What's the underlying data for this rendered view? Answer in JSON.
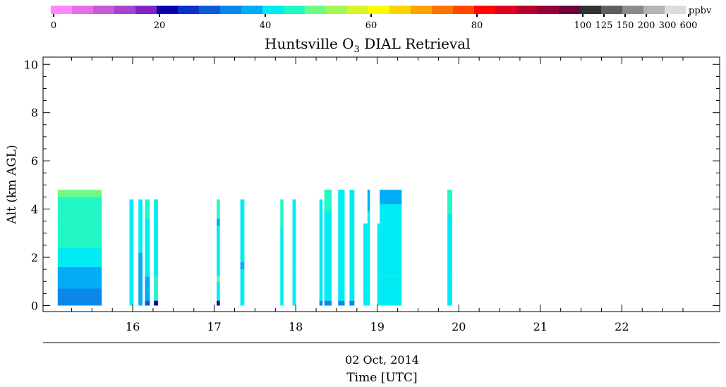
{
  "chart_data": {
    "type": "heatmap",
    "title": "Huntsville O",
    "title_subscript": "3",
    "title_suffix": " DIAL Retrieval",
    "xlabel_date": "02 Oct, 2014",
    "xlabel": "Time [UTC]",
    "ylabel": "Alt (km AGL)",
    "xlim": [
      14.9,
      23.2
    ],
    "ylim": [
      -0.25,
      10.3
    ],
    "x_ticks": [
      16,
      17,
      18,
      19,
      20,
      21,
      22
    ],
    "x_tick_labels": [
      "16",
      "17",
      "18",
      "19",
      "20",
      "21",
      "22"
    ],
    "y_ticks": [
      0,
      2,
      4,
      6,
      8,
      10
    ],
    "y_tick_labels": [
      "0",
      "2",
      "4",
      "6",
      "8",
      "10"
    ],
    "grid": false,
    "colorbar": {
      "units": "ppbv",
      "bins": [
        "#ff88ff",
        "#e36ee8",
        "#c65ad8",
        "#a646d0",
        "#8224c6",
        "#0a00aa",
        "#0a32c8",
        "#0c5ad8",
        "#0b86ea",
        "#02acf6",
        "#00ecf4",
        "#22f7c6",
        "#6ef989",
        "#a6f659",
        "#d9f624",
        "#fdfb00",
        "#fed100",
        "#ffa300",
        "#ff7300",
        "#ff4700",
        "#ff0700",
        "#e3001d",
        "#b7002b",
        "#95003b",
        "#6e003d",
        "#313131",
        "#5f5f5f",
        "#8b8b8b",
        "#b4b4b4",
        "#dcdcdc"
      ],
      "tick_labels": [
        {
          "bin": 0,
          "label": "0"
        },
        {
          "bin": 5,
          "label": "20"
        },
        {
          "bin": 10,
          "label": "40"
        },
        {
          "bin": 15,
          "label": "60"
        },
        {
          "bin": 20,
          "label": "80"
        },
        {
          "bin": 25,
          "label": "100"
        },
        {
          "bin": 26,
          "label": "125"
        },
        {
          "bin": 27,
          "label": "150"
        },
        {
          "bin": 28,
          "label": "200"
        },
        {
          "bin": 29,
          "label": "300"
        },
        {
          "bin": 30,
          "label": "600"
        }
      ]
    },
    "profiles": [
      {
        "t0": 15.08,
        "t1": 15.62,
        "top": 4.8,
        "layers": [
          {
            "z0": 0.0,
            "z1": 0.7,
            "ppbv": 35
          },
          {
            "z0": 0.7,
            "z1": 1.6,
            "ppbv": 38
          },
          {
            "z0": 1.6,
            "z1": 2.4,
            "ppbv": 41
          },
          {
            "z0": 2.4,
            "z1": 3.6,
            "ppbv": 44
          },
          {
            "z0": 3.6,
            "z1": 4.5,
            "ppbv": 46
          },
          {
            "z0": 4.5,
            "z1": 4.8,
            "ppbv": 49
          }
        ]
      },
      {
        "t0": 15.96,
        "t1": 16.01,
        "top": 4.4,
        "layers": [
          {
            "z0": 0.0,
            "z1": 3.0,
            "ppbv": 40
          },
          {
            "z0": 3.0,
            "z1": 4.4,
            "ppbv": 43
          }
        ]
      },
      {
        "t0": 16.07,
        "t1": 16.12,
        "top": 4.4,
        "layers": [
          {
            "z0": 0.0,
            "z1": 2.2,
            "ppbv": 39
          },
          {
            "z0": 2.2,
            "z1": 4.4,
            "ppbv": 42
          }
        ]
      },
      {
        "t0": 16.15,
        "t1": 16.21,
        "top": 4.4,
        "layers": [
          {
            "z0": 0.0,
            "z1": 0.2,
            "ppbv": 28
          },
          {
            "z0": 0.2,
            "z1": 1.2,
            "ppbv": 38
          },
          {
            "z0": 1.2,
            "z1": 3.6,
            "ppbv": 41
          },
          {
            "z0": 3.6,
            "z1": 4.4,
            "ppbv": 47
          }
        ]
      },
      {
        "t0": 16.26,
        "t1": 16.31,
        "top": 4.4,
        "layers": [
          {
            "z0": 0.0,
            "z1": 0.2,
            "ppbv": 22
          },
          {
            "z0": 0.2,
            "z1": 1.2,
            "ppbv": 45
          },
          {
            "z0": 1.2,
            "z1": 4.4,
            "ppbv": 42
          }
        ]
      },
      {
        "t0": 17.03,
        "t1": 17.07,
        "top": 4.4,
        "layers": [
          {
            "z0": 0.0,
            "z1": 0.2,
            "ppbv": 22
          },
          {
            "z0": 0.2,
            "z1": 1.0,
            "ppbv": 40
          },
          {
            "z0": 1.0,
            "z1": 1.2,
            "ppbv": 48
          },
          {
            "z0": 1.2,
            "z1": 3.3,
            "ppbv": 41
          },
          {
            "z0": 3.3,
            "z1": 3.6,
            "ppbv": 37
          },
          {
            "z0": 3.6,
            "z1": 4.4,
            "ppbv": 44
          }
        ]
      },
      {
        "t0": 17.32,
        "t1": 17.37,
        "top": 4.4,
        "layers": [
          {
            "z0": 0.0,
            "z1": 1.5,
            "ppbv": 40
          },
          {
            "z0": 1.5,
            "z1": 1.8,
            "ppbv": 37
          },
          {
            "z0": 1.8,
            "z1": 4.4,
            "ppbv": 42
          }
        ]
      },
      {
        "t0": 17.81,
        "t1": 17.85,
        "top": 4.4,
        "layers": [
          {
            "z0": 0.0,
            "z1": 3.2,
            "ppbv": 40
          },
          {
            "z0": 3.2,
            "z1": 4.4,
            "ppbv": 44
          }
        ]
      },
      {
        "t0": 17.96,
        "t1": 18.0,
        "top": 4.4,
        "layers": [
          {
            "z0": 0.0,
            "z1": 1.5,
            "ppbv": 40
          },
          {
            "z0": 1.5,
            "z1": 4.4,
            "ppbv": 42
          }
        ]
      },
      {
        "t0": 18.29,
        "t1": 18.33,
        "top": 4.4,
        "layers": [
          {
            "z0": 0.0,
            "z1": 0.2,
            "ppbv": 35
          },
          {
            "z0": 0.2,
            "z1": 4.4,
            "ppbv": 41
          }
        ]
      },
      {
        "t0": 18.35,
        "t1": 18.44,
        "top": 4.8,
        "layers": [
          {
            "z0": 0.0,
            "z1": 0.2,
            "ppbv": 35
          },
          {
            "z0": 0.2,
            "z1": 3.9,
            "ppbv": 40
          },
          {
            "z0": 3.9,
            "z1": 4.8,
            "ppbv": 44
          }
        ]
      },
      {
        "t0": 18.52,
        "t1": 18.6,
        "top": 4.8,
        "layers": [
          {
            "z0": 0.0,
            "z1": 0.2,
            "ppbv": 35
          },
          {
            "z0": 0.2,
            "z1": 4.3,
            "ppbv": 40
          },
          {
            "z0": 4.3,
            "z1": 4.8,
            "ppbv": 43
          }
        ]
      },
      {
        "t0": 18.66,
        "t1": 18.72,
        "top": 4.8,
        "layers": [
          {
            "z0": 0.0,
            "z1": 0.2,
            "ppbv": 35
          },
          {
            "z0": 0.2,
            "z1": 4.8,
            "ppbv": 40
          }
        ]
      },
      {
        "t0": 18.83,
        "t1": 18.88,
        "top": 3.4,
        "layers": [
          {
            "z0": 0.0,
            "z1": 3.4,
            "ppbv": 40
          }
        ]
      },
      {
        "t0": 18.88,
        "t1": 18.91,
        "top": 4.8,
        "layers": [
          {
            "z0": 0.0,
            "z1": 3.9,
            "ppbv": 40
          },
          {
            "z0": 3.9,
            "z1": 4.8,
            "ppbv": 37
          }
        ]
      },
      {
        "t0": 19.0,
        "t1": 19.03,
        "top": 3.4,
        "layers": [
          {
            "z0": 0.0,
            "z1": 3.4,
            "ppbv": 40
          }
        ]
      },
      {
        "t0": 19.03,
        "t1": 19.3,
        "top": 4.8,
        "layers": [
          {
            "z0": 0.0,
            "z1": 1.2,
            "ppbv": 40
          },
          {
            "z0": 1.2,
            "z1": 3.3,
            "ppbv": 42
          },
          {
            "z0": 3.3,
            "z1": 4.2,
            "ppbv": 40
          },
          {
            "z0": 4.2,
            "z1": 4.8,
            "ppbv": 37
          }
        ]
      },
      {
        "t0": 19.86,
        "t1": 19.92,
        "top": 4.8,
        "layers": [
          {
            "z0": 0.0,
            "z1": 1.2,
            "ppbv": 40
          },
          {
            "z0": 1.2,
            "z1": 3.8,
            "ppbv": 43
          },
          {
            "z0": 3.8,
            "z1": 4.8,
            "ppbv": 46
          }
        ]
      }
    ]
  }
}
